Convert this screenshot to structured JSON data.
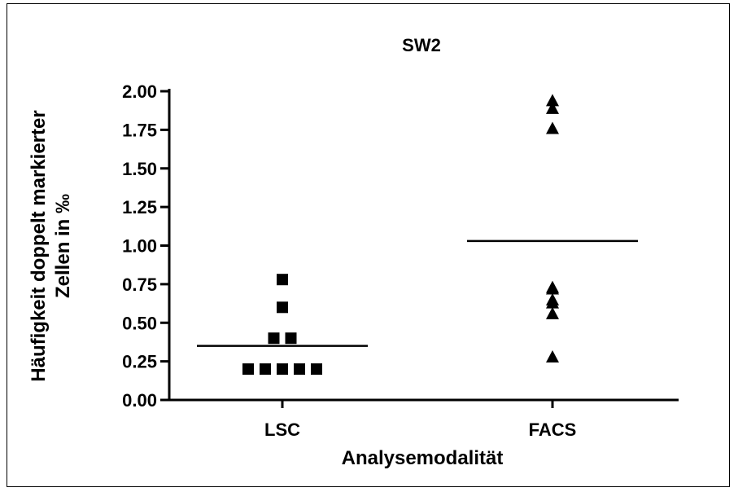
{
  "chart_data": {
    "type": "scatter",
    "title": "SW2",
    "xlabel": "Analysemodalität",
    "ylabel_line1": "Häufigkeit doppelt markierter",
    "ylabel_line2": "Zellen in ‰",
    "categories": [
      "LSC",
      "FACS"
    ],
    "ylim": [
      0,
      2.0
    ],
    "yticks": [
      "0.00",
      "0.25",
      "0.50",
      "0.75",
      "1.00",
      "1.25",
      "1.50",
      "1.75",
      "2.00"
    ],
    "grid": false,
    "legend": "none",
    "series": [
      {
        "category": "LSC",
        "marker": "square",
        "values": [
          0.78,
          0.6,
          0.4,
          0.4,
          0.2,
          0.2,
          0.2,
          0.2,
          0.2
        ],
        "mean": 0.35
      },
      {
        "category": "FACS",
        "marker": "triangle",
        "values": [
          1.94,
          1.89,
          1.76,
          0.73,
          0.72,
          0.65,
          0.63,
          0.56,
          0.28
        ],
        "mean": 1.03
      }
    ]
  }
}
